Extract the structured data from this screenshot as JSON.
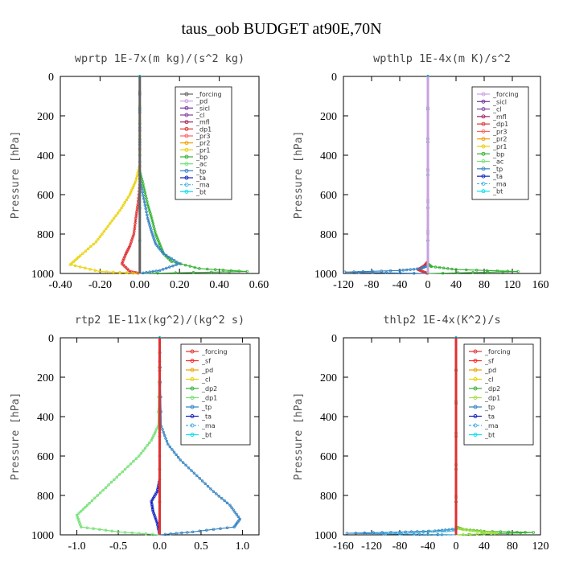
{
  "page_title": "taus_oob  BUDGET at90E,70N",
  "chart_data": [
    {
      "type": "line",
      "title": "wprtp   1E-7x(m kg)/(s^2 kg)",
      "ylabel": "Pressure [hPa]",
      "xlim": [
        -0.4,
        0.6
      ],
      "ylim": [
        1000,
        0
      ],
      "xticks": [
        -0.4,
        -0.2,
        0,
        0.2,
        0.4,
        0.6
      ],
      "xtick_labels": [
        "-0.40",
        "-0.20",
        "0.00",
        "0.20",
        "0.40",
        "0.60"
      ],
      "yticks": [
        0,
        200,
        400,
        600,
        800,
        1000
      ],
      "ytick_labels": [
        "0",
        "200",
        "400",
        "600",
        "800",
        "1000"
      ],
      "grid": false,
      "legend_position": "top-right",
      "series": [
        {
          "name": "_forcing",
          "color": "#606060",
          "marker": "o",
          "x": [
            0,
            0
          ],
          "y": [
            0,
            1000
          ]
        },
        {
          "name": "_pd",
          "color": "#c8a0e0",
          "marker": "o",
          "x": [
            0,
            0
          ],
          "y": [
            0,
            1000
          ]
        },
        {
          "name": "_sicl",
          "color": "#7030a0",
          "marker": "+",
          "x": [
            0,
            0
          ],
          "y": [
            0,
            1000
          ]
        },
        {
          "name": "_cl",
          "color": "#8040a0",
          "marker": "o",
          "x": [
            0,
            0
          ],
          "y": [
            0,
            1000
          ]
        },
        {
          "name": "_mfl",
          "color": "#a02060",
          "marker": "o",
          "x": [
            0,
            0
          ],
          "y": [
            0,
            1000
          ]
        },
        {
          "name": "_dp1",
          "color": "#e03030",
          "marker": "+",
          "x": [
            0,
            0,
            -0.01,
            -0.02,
            -0.03,
            -0.05,
            -0.07,
            -0.09,
            -0.05,
            0
          ],
          "y": [
            0,
            550,
            650,
            720,
            800,
            860,
            900,
            950,
            990,
            1000
          ]
        },
        {
          "name": "_pr3",
          "color": "#ff6060",
          "marker": "o",
          "x": [
            0,
            0
          ],
          "y": [
            0,
            1000
          ]
        },
        {
          "name": "_pr2",
          "color": "#f0a000",
          "marker": "o",
          "x": [
            0,
            0
          ],
          "y": [
            0,
            1000
          ]
        },
        {
          "name": "_pr1",
          "color": "#e8d000",
          "marker": "+",
          "x": [
            0,
            0,
            -0.02,
            -0.05,
            -0.1,
            -0.16,
            -0.22,
            -0.3,
            -0.35,
            -0.2,
            0
          ],
          "y": [
            0,
            450,
            530,
            600,
            680,
            760,
            840,
            910,
            955,
            990,
            1000
          ]
        },
        {
          "name": "_bp",
          "color": "#30b030",
          "marker": "x",
          "x": [
            0,
            0,
            0.02,
            0.04,
            0.06,
            0.08,
            0.1,
            0.12,
            0.16,
            0.3,
            0.54,
            0
          ],
          "y": [
            0,
            480,
            560,
            650,
            720,
            800,
            850,
            900,
            940,
            975,
            990,
            1000
          ]
        },
        {
          "name": "_ac",
          "color": "#70e070",
          "marker": "o",
          "x": [
            0,
            0
          ],
          "y": [
            0,
            1000
          ]
        },
        {
          "name": "_tp",
          "color": "#3080c0",
          "marker": "+",
          "x": [
            0,
            0,
            0.02,
            0.04,
            0.06,
            0.08,
            0.12,
            0.2,
            0.1,
            0
          ],
          "y": [
            0,
            520,
            620,
            720,
            790,
            850,
            900,
            950,
            985,
            1000
          ]
        },
        {
          "name": "_ta",
          "color": "#1020c0",
          "marker": "+",
          "x": [
            0,
            0
          ],
          "y": [
            0,
            1000
          ]
        },
        {
          "name": "_ma",
          "color": "#40b0e0",
          "marker": "-",
          "x": [
            0,
            0
          ],
          "y": [
            0,
            1000
          ]
        },
        {
          "name": "_bt",
          "color": "#00e0f0",
          "marker": "o",
          "x": [
            0,
            0
          ],
          "y": [
            0,
            1000
          ]
        }
      ]
    },
    {
      "type": "line",
      "title": "wpthlp   1E-4x(m K)/s^2",
      "ylabel": "Pressure [hPa]",
      "xlim": [
        -120,
        160
      ],
      "ylim": [
        1000,
        0
      ],
      "xticks": [
        -120,
        -80,
        -40,
        0,
        40,
        80,
        120,
        160
      ],
      "xtick_labels": [
        "-120",
        "-80",
        "-40",
        "0",
        "40",
        "80",
        "120",
        "160"
      ],
      "yticks": [
        0,
        200,
        400,
        600,
        800,
        1000
      ],
      "ytick_labels": [
        "0",
        "200",
        "400",
        "600",
        "800",
        "1000"
      ],
      "grid": false,
      "legend_position": "top-right",
      "series": [
        {
          "name": "_forcing",
          "color": "#c8a0e0",
          "marker": "o",
          "x": [
            0,
            0
          ],
          "y": [
            0,
            1000
          ]
        },
        {
          "name": "_sicl",
          "color": "#7030a0",
          "marker": "+",
          "x": [
            0,
            0
          ],
          "y": [
            0,
            1000
          ]
        },
        {
          "name": "_cl",
          "color": "#8040a0",
          "marker": "o",
          "x": [
            0,
            0
          ],
          "y": [
            0,
            1000
          ]
        },
        {
          "name": "_mfl",
          "color": "#a02060",
          "marker": "o",
          "x": [
            0,
            0
          ],
          "y": [
            0,
            1000
          ]
        },
        {
          "name": "_dp1",
          "color": "#e03030",
          "marker": "+",
          "x": [
            0,
            0,
            -5,
            -14,
            -4,
            0
          ],
          "y": [
            0,
            940,
            960,
            980,
            995,
            1000
          ]
        },
        {
          "name": "_pr3",
          "color": "#ff6060",
          "marker": "o",
          "x": [
            0,
            0
          ],
          "y": [
            0,
            1000
          ]
        },
        {
          "name": "_pr2",
          "color": "#f0a000",
          "marker": "o",
          "x": [
            0,
            0
          ],
          "y": [
            0,
            1000
          ]
        },
        {
          "name": "_pr1",
          "color": "#e8d000",
          "marker": "+",
          "x": [
            0,
            0
          ],
          "y": [
            0,
            1000
          ]
        },
        {
          "name": "_bp",
          "color": "#30b030",
          "marker": "x",
          "x": [
            0,
            0,
            5,
            40,
            128,
            0
          ],
          "y": [
            0,
            950,
            965,
            980,
            990,
            1000
          ]
        },
        {
          "name": "_ac",
          "color": "#70e070",
          "marker": "o",
          "x": [
            0,
            0
          ],
          "y": [
            0,
            1000
          ]
        },
        {
          "name": "_tp",
          "color": "#3080c0",
          "marker": "+",
          "x": [
            0,
            0,
            -10,
            -40,
            -118,
            0
          ],
          "y": [
            0,
            960,
            975,
            985,
            993,
            1000
          ]
        },
        {
          "name": "_ta",
          "color": "#1020c0",
          "marker": "+",
          "x": [
            0,
            0
          ],
          "y": [
            0,
            1000
          ]
        },
        {
          "name": "_ma",
          "color": "#40b0e0",
          "marker": "-",
          "x": [
            0,
            0
          ],
          "y": [
            0,
            1000
          ]
        },
        {
          "name": "_bt",
          "color": "#00e0f0",
          "marker": "o",
          "x": [
            0,
            0
          ],
          "y": [
            0,
            1000
          ]
        }
      ]
    },
    {
      "type": "line",
      "title": "rtp2   1E-11x(kg^2)/(kg^2 s)",
      "ylabel": "Pressure [hPa]",
      "xlim": [
        -1.2,
        1.2
      ],
      "ylim": [
        1000,
        0
      ],
      "xticks": [
        -1.0,
        -0.5,
        0.0,
        0.5,
        1.0
      ],
      "xtick_labels": [
        "-1.0",
        "-0.5",
        "0.0",
        "0.5",
        "1.0"
      ],
      "yticks": [
        0,
        200,
        400,
        600,
        800,
        1000
      ],
      "ytick_labels": [
        "0",
        "200",
        "400",
        "600",
        "800",
        "1000"
      ],
      "grid": false,
      "legend_position": "top-right",
      "series": [
        {
          "name": "_forcing",
          "color": "#e03030",
          "marker": "o",
          "x": [
            0,
            0
          ],
          "y": [
            0,
            1000
          ]
        },
        {
          "name": "_sf",
          "color": "#ff2020",
          "marker": "x",
          "x": [
            0,
            0
          ],
          "y": [
            0,
            1000
          ]
        },
        {
          "name": "_pd",
          "color": "#f0a000",
          "marker": "o",
          "x": [
            0,
            0
          ],
          "y": [
            0,
            1000
          ]
        },
        {
          "name": "_cl",
          "color": "#e8d000",
          "marker": "o",
          "x": [
            0,
            0
          ],
          "y": [
            0,
            1000
          ]
        },
        {
          "name": "_dp2",
          "color": "#30b030",
          "marker": "x",
          "x": [
            0,
            0
          ],
          "y": [
            0,
            1000
          ]
        },
        {
          "name": "_dp1",
          "color": "#70e070",
          "marker": "o",
          "x": [
            0,
            -0.02,
            -0.1,
            -0.25,
            -0.45,
            -0.65,
            -0.85,
            -1.0,
            -0.95,
            -0.5,
            0
          ],
          "y": [
            0,
            450,
            520,
            600,
            680,
            760,
            840,
            900,
            960,
            985,
            1000
          ]
        },
        {
          "name": "_tp",
          "color": "#3080c0",
          "marker": "+",
          "x": [
            0,
            0.02,
            0.1,
            0.25,
            0.45,
            0.65,
            0.85,
            0.97,
            0.9,
            0.4,
            0
          ],
          "y": [
            0,
            450,
            540,
            620,
            700,
            780,
            850,
            920,
            960,
            985,
            1000
          ]
        },
        {
          "name": "_ta",
          "color": "#1020c0",
          "marker": "+",
          "x": [
            0,
            0,
            -0.03,
            -0.1,
            -0.08,
            -0.03,
            0
          ],
          "y": [
            0,
            720,
            780,
            830,
            880,
            940,
            1000
          ]
        },
        {
          "name": "_ma",
          "color": "#40b0e0",
          "marker": "-",
          "x": [
            0,
            0
          ],
          "y": [
            0,
            1000
          ]
        },
        {
          "name": "_bt",
          "color": "#00e0f0",
          "marker": "o",
          "x": [
            0,
            0
          ],
          "y": [
            0,
            1000
          ]
        }
      ]
    },
    {
      "type": "line",
      "title": "thlp2   1E-4x(K^2)/s",
      "ylabel": "Pressure [hPa]",
      "xlim": [
        -160,
        120
      ],
      "ylim": [
        1000,
        0
      ],
      "xticks": [
        -160,
        -120,
        -80,
        -40,
        0,
        40,
        80,
        120
      ],
      "xtick_labels": [
        "-160",
        "-120",
        "-80",
        "-40",
        "0",
        "40",
        "80",
        "120"
      ],
      "yticks": [
        0,
        200,
        400,
        600,
        800,
        1000
      ],
      "ytick_labels": [
        "0",
        "200",
        "400",
        "600",
        "800",
        "1000"
      ],
      "grid": false,
      "legend_position": "top-right",
      "series": [
        {
          "name": "_forcing",
          "color": "#e03030",
          "marker": "o",
          "x": [
            0,
            0
          ],
          "y": [
            0,
            1000
          ]
        },
        {
          "name": "_sf",
          "color": "#ff2020",
          "marker": "x",
          "x": [
            0,
            0
          ],
          "y": [
            0,
            1000
          ]
        },
        {
          "name": "_pd",
          "color": "#f0a000",
          "marker": "o",
          "x": [
            0,
            0
          ],
          "y": [
            0,
            1000
          ]
        },
        {
          "name": "_cl",
          "color": "#e8d000",
          "marker": "o",
          "x": [
            0,
            0
          ],
          "y": [
            0,
            1000
          ]
        },
        {
          "name": "_dp2",
          "color": "#30b030",
          "marker": "x",
          "x": [
            0,
            0,
            10,
            40,
            110,
            0
          ],
          "y": [
            0,
            960,
            972,
            982,
            988,
            1000
          ]
        },
        {
          "name": "_dp1",
          "color": "#a0e040",
          "marker": "o",
          "x": [
            0,
            0,
            15,
            40,
            60,
            0
          ],
          "y": [
            0,
            965,
            975,
            985,
            992,
            1000
          ]
        },
        {
          "name": "_tp",
          "color": "#3080c0",
          "marker": "+",
          "x": [
            0,
            0,
            -30,
            -80,
            -155,
            0
          ],
          "y": [
            0,
            970,
            980,
            986,
            992,
            1000
          ]
        },
        {
          "name": "_ta",
          "color": "#1020c0",
          "marker": "+",
          "x": [
            0,
            0
          ],
          "y": [
            0,
            1000
          ]
        },
        {
          "name": "_ma",
          "color": "#40b0e0",
          "marker": "-",
          "x": [
            0,
            0,
            -20,
            -60,
            -120,
            0
          ],
          "y": [
            0,
            975,
            982,
            988,
            993,
            1000
          ]
        },
        {
          "name": "_bt",
          "color": "#00e0f0",
          "marker": "o",
          "x": [
            0,
            0
          ],
          "y": [
            0,
            1000
          ]
        }
      ]
    }
  ]
}
